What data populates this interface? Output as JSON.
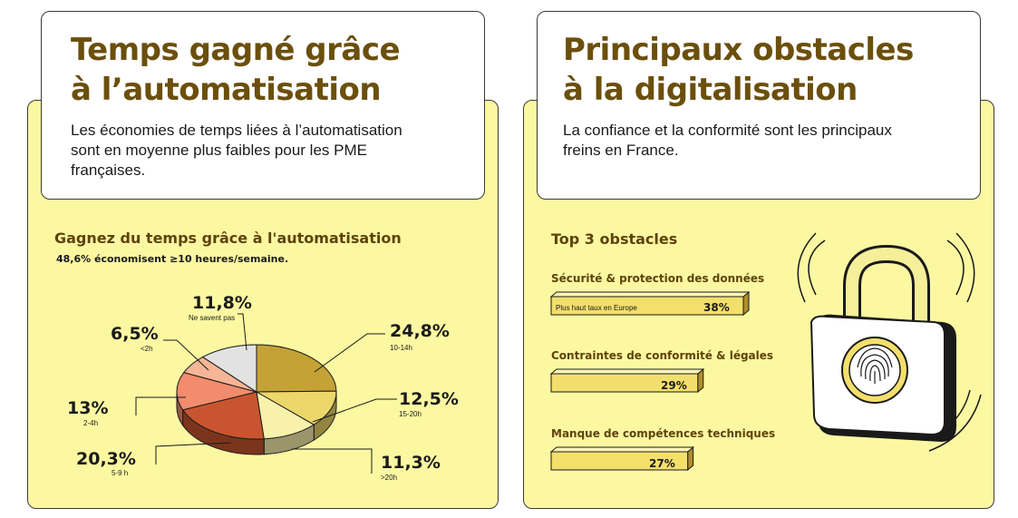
{
  "left_card": {
    "title_line1": "Temps gagné grâce",
    "title_line2": "à l’automatisation",
    "desc_line1": "Les économies de temps liées à l’automatisation",
    "desc_line2": "sont en moyenne plus faibles pour les PME",
    "desc_line3": "françaises."
  },
  "right_card": {
    "title_line1": "Principaux obstacles",
    "title_line2": "à la digitalisation",
    "desc_line1": "La confiance et la conformité sont les principaux",
    "desc_line2": "freins en France."
  },
  "pie_section": {
    "title": "Gagnez du temps grâce à l'automatisation",
    "subtitle": "48,6% économisent ≥10 heures/semaine."
  },
  "obstacles_section": {
    "title": "Top 3 obstacles"
  },
  "colors": {
    "title_brown": "#6b4f0c",
    "panel_yellow": "#fcf8a2",
    "bar_yellow": "#f3df6c"
  },
  "chart_data": [
    {
      "type": "pie",
      "title": "Gagnez du temps grâce à l'automatisation",
      "subtitle": "48,6% économisent ≥10 heures/semaine.",
      "slices": [
        {
          "value_label": "24,8%",
          "category": "10-14h",
          "value": 24.8,
          "color": "#c4a236"
        },
        {
          "value_label": "12,5%",
          "category": "15-20h",
          "value": 12.5,
          "color": "#ecd76a"
        },
        {
          "value_label": "11,3%",
          "category": ">20h",
          "value": 11.3,
          "color": "#f8f1ac"
        },
        {
          "value_label": "20,3%",
          "category": "5-9 h",
          "value": 20.3,
          "color": "#c8552f"
        },
        {
          "value_label": "13%",
          "category": "2-4h",
          "value": 13.0,
          "color": "#f28c6c"
        },
        {
          "value_label": "6,5%",
          "category": "<2h",
          "value": 6.5,
          "color": "#f7b597"
        },
        {
          "value_label": "11,8%",
          "category": "Ne savent pas",
          "value": 11.8,
          "color": "#e2e2e2"
        }
      ]
    },
    {
      "type": "bar",
      "title": "Top 3 obstacles",
      "bars": [
        {
          "category": "Sécurité & protection des données",
          "value": 38,
          "value_label": "38%",
          "note": "Plus haut taux en Europe"
        },
        {
          "category": "Contraintes de conformité & légales",
          "value": 29,
          "value_label": "29%",
          "note": ""
        },
        {
          "category": "Manque de compétences techniques",
          "value": 27,
          "value_label": "27%",
          "note": ""
        }
      ]
    }
  ]
}
